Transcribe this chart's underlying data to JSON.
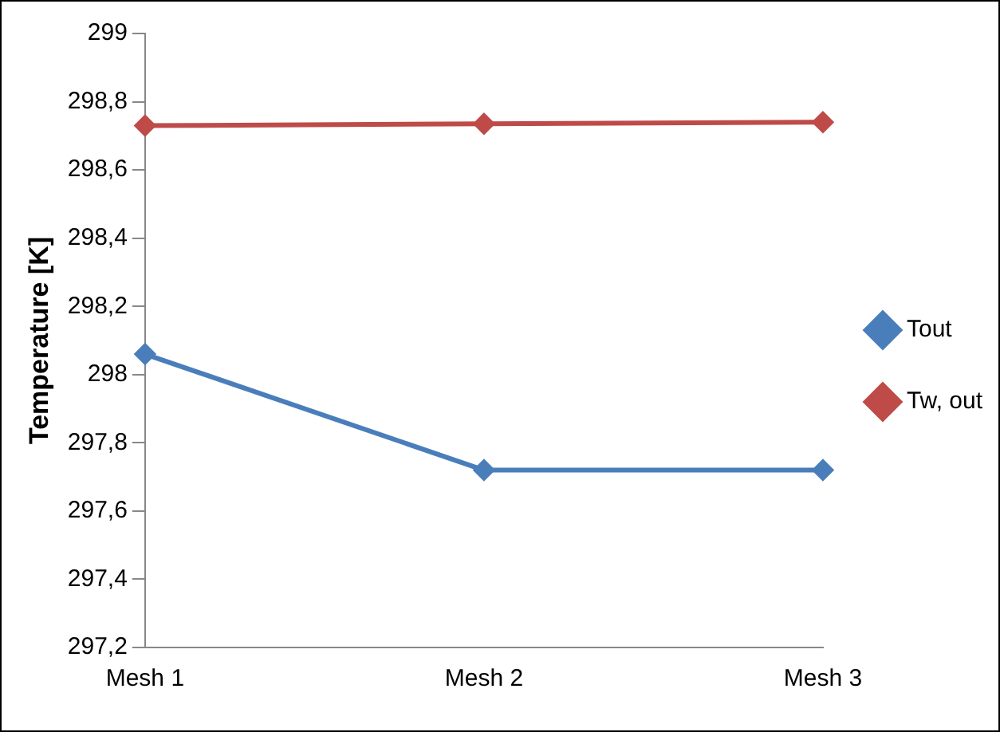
{
  "chart_data": {
    "type": "line",
    "ylabel": "Temperature [K]",
    "categories": [
      "Mesh 1",
      "Mesh 2",
      "Mesh 3"
    ],
    "series": [
      {
        "name": "Tout",
        "color": "#4a7ebb",
        "values": [
          298.06,
          297.72,
          297.72
        ]
      },
      {
        "name": "Tw, out",
        "color": "#be4b48",
        "values": [
          298.73,
          298.735,
          298.74
        ]
      }
    ],
    "ylim": [
      297.2,
      299
    ],
    "yticks": [
      {
        "value": 297.2,
        "label": "297,2"
      },
      {
        "value": 297.4,
        "label": "297,4"
      },
      {
        "value": 297.6,
        "label": "297,6"
      },
      {
        "value": 297.8,
        "label": "297,8"
      },
      298,
      {
        "value": 298.2,
        "label": "298,2"
      },
      {
        "value": 298.4,
        "label": "298,4"
      },
      {
        "value": 298.6,
        "label": "298,6"
      },
      {
        "value": 298.8,
        "label": "298,8"
      },
      299
    ],
    "grid": false,
    "legend": "right",
    "marker": "diamond",
    "line_style": "solid"
  }
}
